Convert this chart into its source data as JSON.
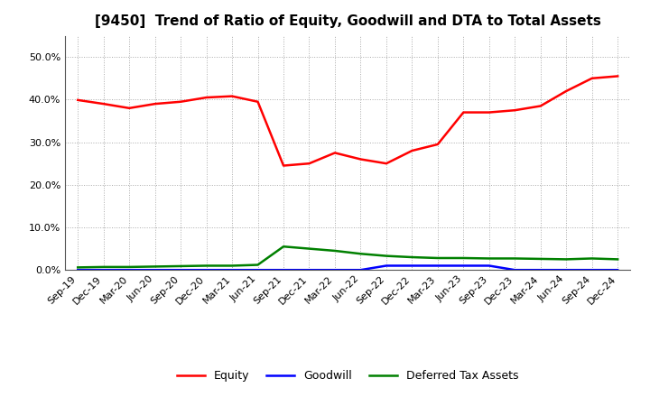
{
  "title": "[9450]  Trend of Ratio of Equity, Goodwill and DTA to Total Assets",
  "x_labels": [
    "Sep-19",
    "Dec-19",
    "Mar-20",
    "Jun-20",
    "Sep-20",
    "Dec-20",
    "Mar-21",
    "Jun-21",
    "Sep-21",
    "Dec-21",
    "Mar-22",
    "Jun-22",
    "Sep-22",
    "Dec-22",
    "Mar-23",
    "Jun-23",
    "Sep-23",
    "Dec-23",
    "Mar-24",
    "Jun-24",
    "Sep-24",
    "Dec-24"
  ],
  "equity": [
    0.399,
    0.39,
    0.38,
    0.39,
    0.395,
    0.405,
    0.408,
    0.395,
    0.245,
    0.25,
    0.275,
    0.26,
    0.25,
    0.28,
    0.295,
    0.37,
    0.37,
    0.375,
    0.385,
    0.42,
    0.45,
    0.455
  ],
  "goodwill": [
    0.0,
    0.0,
    0.0,
    0.0,
    0.0,
    0.0,
    0.0,
    0.0,
    0.0,
    0.0,
    0.0,
    0.0,
    0.01,
    0.01,
    0.01,
    0.01,
    0.01,
    0.0,
    0.0,
    0.0,
    0.0,
    0.0
  ],
  "dta": [
    0.006,
    0.007,
    0.007,
    0.008,
    0.009,
    0.01,
    0.01,
    0.012,
    0.055,
    0.05,
    0.045,
    0.038,
    0.033,
    0.03,
    0.028,
    0.028,
    0.027,
    0.027,
    0.026,
    0.025,
    0.027,
    0.025
  ],
  "equity_color": "#FF0000",
  "goodwill_color": "#0000FF",
  "dta_color": "#008000",
  "ylim": [
    0.0,
    0.55
  ],
  "yticks": [
    0.0,
    0.1,
    0.2,
    0.3,
    0.4,
    0.5
  ],
  "background_color": "#FFFFFF",
  "plot_bg_color": "#FFFFFF",
  "grid_color": "#AAAAAA",
  "legend_labels": [
    "Equity",
    "Goodwill",
    "Deferred Tax Assets"
  ],
  "title_fontsize": 11,
  "tick_fontsize": 8,
  "linewidth": 1.8
}
